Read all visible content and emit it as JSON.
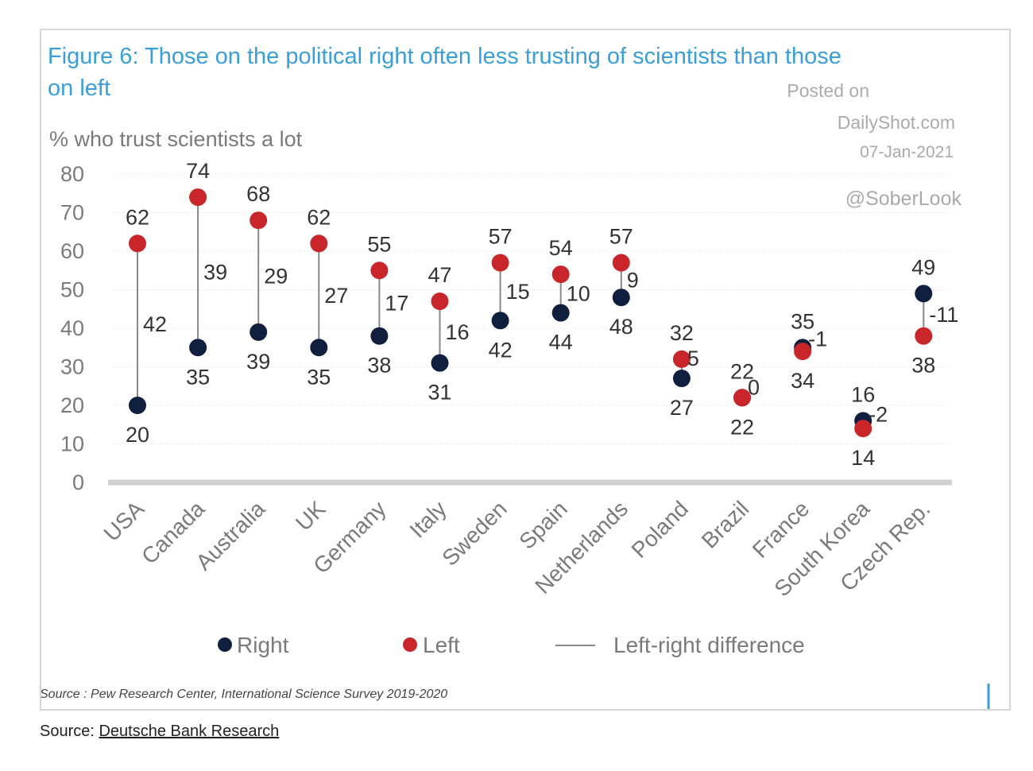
{
  "chart_data": {
    "type": "dot-range",
    "title": "Figure 6: Those on the political right often less trusting of scientists than those on left",
    "title_lines": [
      "Figure 6: Those on the political right often less trusting of scientists than those",
      "on left"
    ],
    "ylabel": "% who trust scientists a lot",
    "ylim": [
      0,
      80
    ],
    "yticks": [
      0,
      10,
      20,
      30,
      40,
      50,
      60,
      70,
      80
    ],
    "categories": [
      "USA",
      "Canada",
      "Australia",
      "UK",
      "Germany",
      "Italy",
      "Sweden",
      "Spain",
      "Netherlands",
      "Poland",
      "Brazil",
      "France",
      "South Korea",
      "Czech Rep."
    ],
    "series": [
      {
        "name": "Right",
        "color": "#0f1f3d",
        "values": [
          20,
          35,
          39,
          35,
          38,
          31,
          42,
          44,
          48,
          27,
          22,
          35,
          16,
          49
        ]
      },
      {
        "name": "Left",
        "color": "#c8262b",
        "values": [
          62,
          74,
          68,
          62,
          55,
          47,
          57,
          54,
          57,
          32,
          22,
          34,
          14,
          38
        ]
      }
    ],
    "differences": [
      42,
      39,
      29,
      27,
      17,
      16,
      15,
      10,
      9,
      5,
      0,
      -1,
      -2,
      -11
    ],
    "difference_legend": "Left-right difference",
    "watermark": {
      "line1": "Posted on",
      "line2": "DailyShot.com",
      "line3": "07-Jan-2021",
      "handle": "@SoberLook"
    },
    "source_note": "Source : Pew Research Center, International Science Survey 2019-2020",
    "legend_position": "bottom",
    "grid": true
  },
  "caption": {
    "prefix": "Source: ",
    "link_text": "Deutsche Bank Research"
  },
  "colors": {
    "title": "#3a9fd9",
    "axis_text": "#7a7a7a",
    "label_text": "#333333",
    "stem": "#888888",
    "baseline": "#d0d0d0"
  }
}
